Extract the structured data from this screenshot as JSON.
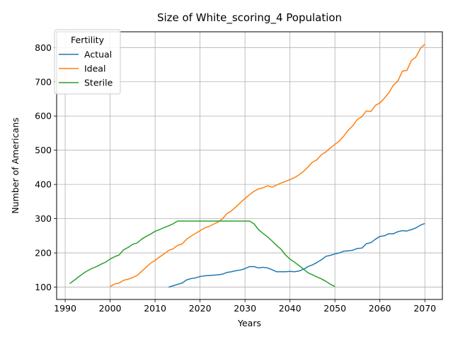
{
  "chart_data": {
    "type": "line",
    "title": "Size of White_scoring_4 Population",
    "xlabel": "Years",
    "ylabel": "Number of Americans",
    "xlim": [
      1988.1,
      2073.9
    ],
    "ylim": [
      64,
      846
    ],
    "xticks": [
      1990,
      2000,
      2010,
      2020,
      2030,
      2040,
      2050,
      2060,
      2070
    ],
    "yticks": [
      100,
      200,
      300,
      400,
      500,
      600,
      700,
      800
    ],
    "grid": true,
    "legend": {
      "title": "Fertility",
      "position": "top-left"
    },
    "series": [
      {
        "name": "Actual",
        "color": "#1f77b4",
        "x": [
          2013,
          2014,
          2015,
          2016,
          2017,
          2018,
          2019,
          2020,
          2021,
          2022,
          2023,
          2024,
          2025,
          2026,
          2027,
          2028,
          2029,
          2030,
          2031,
          2032,
          2033,
          2034,
          2035,
          2036,
          2037,
          2038,
          2039,
          2040,
          2041,
          2042,
          2043,
          2044,
          2045,
          2046,
          2047,
          2048,
          2049,
          2050,
          2051,
          2052,
          2053,
          2054,
          2055,
          2056,
          2057,
          2058,
          2059,
          2060,
          2061,
          2062,
          2063,
          2064,
          2065,
          2066,
          2067,
          2068,
          2069,
          2070
        ],
        "y": [
          100,
          104,
          108,
          112,
          121,
          125,
          127,
          131,
          133,
          134,
          135,
          136,
          138,
          143,
          145,
          148,
          150,
          154,
          160,
          160,
          156,
          158,
          156,
          151,
          145,
          145,
          145,
          146,
          145,
          147,
          152,
          160,
          165,
          172,
          180,
          190,
          193,
          197,
          200,
          205,
          206,
          208,
          213,
          214,
          227,
          230,
          240,
          248,
          250,
          256,
          256,
          262,
          265,
          264,
          268,
          273,
          281,
          286
        ]
      },
      {
        "name": "Ideal",
        "color": "#ff7f0e",
        "x": [
          2000,
          2001,
          2002,
          2003,
          2004,
          2005,
          2006,
          2007,
          2008,
          2009,
          2010,
          2011,
          2012,
          2013,
          2014,
          2015,
          2016,
          2017,
          2018,
          2019,
          2020,
          2021,
          2022,
          2023,
          2024,
          2025,
          2026,
          2027,
          2028,
          2029,
          2030,
          2031,
          2032,
          2033,
          2034,
          2035,
          2036,
          2037,
          2038,
          2039,
          2040,
          2041,
          2042,
          2043,
          2044,
          2045,
          2046,
          2047,
          2048,
          2049,
          2050,
          2051,
          2052,
          2053,
          2054,
          2055,
          2056,
          2057,
          2058,
          2059,
          2060,
          2061,
          2062,
          2063,
          2064,
          2065,
          2066,
          2067,
          2068,
          2069,
          2070
        ],
        "y": [
          102,
          109,
          112,
          120,
          123,
          128,
          134,
          146,
          158,
          170,
          178,
          188,
          197,
          207,
          212,
          222,
          226,
          240,
          249,
          257,
          265,
          273,
          277,
          284,
          290,
          300,
          315,
          323,
          335,
          347,
          359,
          370,
          380,
          387,
          390,
          396,
          392,
          398,
          404,
          409,
          414,
          420,
          428,
          438,
          451,
          465,
          472,
          487,
          495,
          507,
          517,
          527,
          542,
          559,
          572,
          590,
          598,
          615,
          613,
          631,
          638,
          652,
          668,
          690,
          702,
          731,
          733,
          762,
          772,
          797,
          810
        ]
      },
      {
        "name": "Sterile",
        "color": "#2ca02c",
        "x": [
          1991,
          1992,
          1993,
          1994,
          1995,
          1996,
          1997,
          1998,
          1999,
          2000,
          2001,
          2002,
          2003,
          2004,
          2005,
          2006,
          2007,
          2008,
          2009,
          2010,
          2011,
          2012,
          2013,
          2014,
          2015,
          2016,
          2017,
          2018,
          2019,
          2020,
          2021,
          2022,
          2023,
          2024,
          2025,
          2026,
          2027,
          2028,
          2029,
          2030,
          2031,
          2032,
          2033,
          2034,
          2035,
          2036,
          2037,
          2038,
          2039,
          2040,
          2041,
          2042,
          2043,
          2044,
          2045,
          2046,
          2047,
          2048,
          2049,
          2050
        ],
        "y": [
          110,
          120,
          130,
          140,
          148,
          155,
          160,
          167,
          173,
          182,
          189,
          194,
          209,
          216,
          225,
          229,
          240,
          248,
          255,
          263,
          268,
          274,
          279,
          285,
          293,
          293,
          293,
          293,
          293,
          293,
          293,
          293,
          293,
          293,
          293,
          293,
          293,
          293,
          293,
          293,
          293,
          285,
          268,
          257,
          247,
          235,
          222,
          211,
          194,
          182,
          173,
          163,
          153,
          142,
          136,
          130,
          124,
          117,
          108,
          102
        ]
      }
    ]
  }
}
